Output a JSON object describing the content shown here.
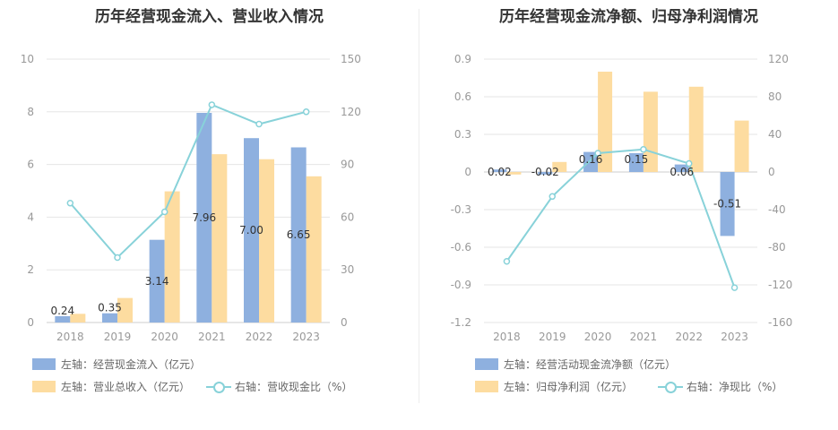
{
  "chart_data": [
    {
      "type": "bar",
      "title": "历年经营现金流入、营业收入情况",
      "categories": [
        "2018",
        "2019",
        "2020",
        "2021",
        "2022",
        "2023"
      ],
      "left_axis": {
        "min": 0,
        "max": 10,
        "ticks": [
          "0",
          "2",
          "4",
          "6",
          "8",
          "10"
        ]
      },
      "right_axis": {
        "min": 0,
        "max": 150,
        "ticks": [
          "0",
          "30",
          "60",
          "90",
          "120",
          "150"
        ]
      },
      "series": [
        {
          "name": "左轴：经营现金流入（亿元）",
          "axis": "left",
          "kind": "bar",
          "color": "#8eb0df",
          "values": [
            0.24,
            0.35,
            3.14,
            7.96,
            7.0,
            6.65
          ],
          "labels": [
            "0.24",
            "0.35",
            "3.14",
            "7.96",
            "7.00",
            "6.65"
          ]
        },
        {
          "name": "左轴：营业总收入（亿元）",
          "axis": "left",
          "kind": "bar",
          "color": "#fddca0",
          "values": [
            0.33,
            0.93,
            4.98,
            6.39,
            6.2,
            5.55
          ]
        },
        {
          "name": "右轴：营收现金比（%）",
          "axis": "right",
          "kind": "line",
          "color": "#88d2d9",
          "values": [
            68,
            37,
            63,
            124,
            113,
            120
          ]
        }
      ]
    },
    {
      "type": "bar",
      "title": "历年经营现金流净额、归母净利润情况",
      "categories": [
        "2018",
        "2019",
        "2020",
        "2021",
        "2022",
        "2023"
      ],
      "left_axis": {
        "min": -1.2,
        "max": 0.9,
        "ticks": [
          "-1.2",
          "-0.9",
          "-0.6",
          "-0.3",
          "0",
          "0.3",
          "0.6",
          "0.9"
        ]
      },
      "right_axis": {
        "min": -160,
        "max": 120,
        "ticks": [
          "-160",
          "-120",
          "-80",
          "-40",
          "0",
          "40",
          "80",
          "120"
        ]
      },
      "series": [
        {
          "name": "左轴：经营活动现金流净额（亿元）",
          "axis": "left",
          "kind": "bar",
          "color": "#8eb0df",
          "values": [
            0.02,
            -0.02,
            0.16,
            0.15,
            0.06,
            -0.51
          ],
          "labels": [
            "0.02",
            "-0.02",
            "0.16",
            "0.15",
            "0.06",
            "-0.51"
          ]
        },
        {
          "name": "左轴：归母净利润（亿元）",
          "axis": "left",
          "kind": "bar",
          "color": "#fddca0",
          "values": [
            -0.02,
            0.08,
            0.8,
            0.64,
            0.68,
            0.41
          ]
        },
        {
          "name": "右轴：净现比（%）",
          "axis": "right",
          "kind": "line",
          "color": "#88d2d9",
          "values": [
            -95,
            -26,
            20,
            24,
            9,
            -123
          ]
        }
      ]
    }
  ]
}
